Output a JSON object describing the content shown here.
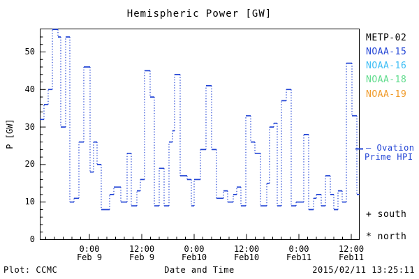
{
  "title": "Hemispheric Power [GW]",
  "axes": {
    "ylabel": "P [GW]",
    "xlabel": "Date and Time",
    "y_ticks": [
      "0",
      "10",
      "20",
      "30",
      "40",
      "50"
    ],
    "x_ticks": [
      {
        "time": "0:00",
        "date": "Feb 9"
      },
      {
        "time": "12:00",
        "date": "Feb 9"
      },
      {
        "time": "0:00",
        "date": "Feb10"
      },
      {
        "time": "12:00",
        "date": "Feb10"
      },
      {
        "time": "0:00",
        "date": "Feb11"
      },
      {
        "time": "12:00",
        "date": "Feb11"
      }
    ]
  },
  "legend": {
    "items": [
      {
        "label": "METP-02",
        "color": "#000000"
      },
      {
        "label": "NOAA-15",
        "color": "#2244d5"
      },
      {
        "label": "NOAA-16",
        "color": "#3bbdf5"
      },
      {
        "label": "NOAA-18",
        "color": "#5fdc8c"
      },
      {
        "label": "NOAA-19",
        "color": "#f09a28"
      }
    ]
  },
  "annotations": {
    "ovation_line1": "– Ovation",
    "ovation_line2": "Prime HPI",
    "ovation_color": "#2244d5",
    "south_marker": "+ south",
    "north_marker": "* north"
  },
  "footer": {
    "left": "Plot: CCMC",
    "timestamp": "2015/02/11 13:25:11"
  },
  "chart_data": {
    "type": "line",
    "style": "step-post; solid horizontal levels joined by dotted vertical connectors",
    "title": "Hemispheric Power [GW]",
    "xlabel": "Date and Time",
    "ylabel": "P [GW]",
    "ylim": [
      0,
      56
    ],
    "yticks": [
      0,
      10,
      20,
      30,
      40,
      50
    ],
    "x_axis_note": "time from 2015-02-08 ~12:38 UT to 2015-02-11 ~13:45 UT; major ticks every 12 h, minor ticks every 2 h",
    "legend_position": "right, outside plot",
    "grid": false,
    "color": "#2244d5",
    "series_name": "Ovation Prime HPI (hemispheric power, GW)",
    "t_hours": [
      -11.36,
      -10.4,
      -9.44,
      -8.48,
      -7.2,
      -6.56,
      -5.44,
      -4.48,
      -3.52,
      -2.4,
      -1.28,
      0.16,
      0.96,
      1.76,
      2.72,
      4.64,
      5.6,
      7.2,
      8.64,
      9.6,
      10.88,
      11.68,
      12.64,
      13.92,
      14.88,
      16.0,
      17.12,
      18.24,
      19.04,
      19.52,
      20.8,
      22.4,
      23.36,
      24.0,
      25.44,
      26.72,
      28.0,
      29.12,
      30.72,
      31.68,
      32.96,
      33.76,
      34.72,
      35.84,
      36.96,
      37.92,
      39.2,
      40.64,
      41.28,
      42.24,
      43.04,
      44.0,
      45.12,
      46.24,
      47.36,
      49.12,
      50.24,
      51.36,
      52.0,
      53.12,
      54.08,
      55.2,
      56.0,
      56.96,
      57.92,
      58.88,
      60.16,
      61.28
    ],
    "t_hours_zero": "2015-02-09 00:00",
    "t_end_hours": 61.76,
    "x_times": [
      "02-08 12:38",
      "02-08 13:36",
      "02-08 14:34",
      "02-08 15:31",
      "02-08 16:48",
      "02-08 17:26",
      "02-08 18:34",
      "02-08 19:31",
      "02-08 20:29",
      "02-08 21:36",
      "02-08 22:43",
      "02-09 00:10",
      "02-09 00:58",
      "02-09 01:46",
      "02-09 02:43",
      "02-09 04:38",
      "02-09 05:36",
      "02-09 07:12",
      "02-09 08:38",
      "02-09 09:36",
      "02-09 10:53",
      "02-09 11:41",
      "02-09 12:38",
      "02-09 13:55",
      "02-09 14:53",
      "02-09 16:00",
      "02-09 17:07",
      "02-09 18:14",
      "02-09 19:02",
      "02-09 19:31",
      "02-09 20:48",
      "02-09 22:24",
      "02-09 23:22",
      "02-10 00:00",
      "02-10 01:26",
      "02-10 02:43",
      "02-10 04:00",
      "02-10 05:07",
      "02-10 06:43",
      "02-10 07:41",
      "02-10 08:58",
      "02-10 09:46",
      "02-10 10:43",
      "02-10 11:50",
      "02-10 12:58",
      "02-10 13:55",
      "02-10 15:12",
      "02-10 16:38",
      "02-10 17:17",
      "02-10 18:14",
      "02-10 19:02",
      "02-10 20:00",
      "02-10 21:07",
      "02-10 22:14",
      "02-10 23:22",
      "02-11 01:07",
      "02-11 02:14",
      "02-11 03:22",
      "02-11 04:00",
      "02-11 05:07",
      "02-11 06:05",
      "02-11 07:12",
      "02-11 08:00",
      "02-11 08:58",
      "02-11 09:55",
      "02-11 10:53",
      "02-11 12:10",
      "02-11 13:17"
    ],
    "values": [
      32,
      36,
      40,
      56,
      54,
      30,
      54,
      10,
      11,
      26,
      46,
      18,
      26,
      20,
      8,
      12,
      14,
      10,
      23,
      9,
      13,
      16,
      45,
      38,
      9,
      19,
      9,
      26,
      29,
      44,
      17,
      16,
      9,
      16,
      24,
      41,
      24,
      11,
      13,
      10,
      12,
      14,
      9,
      33,
      26,
      23,
      9,
      15,
      30,
      31,
      9,
      37,
      40,
      9,
      10,
      28,
      8,
      11,
      12,
      9,
      17,
      12,
      8,
      13,
      10,
      47,
      33,
      12
    ]
  }
}
